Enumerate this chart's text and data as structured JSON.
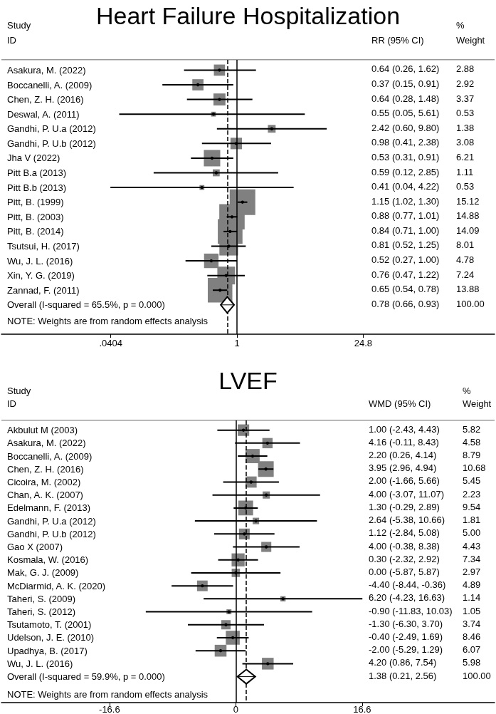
{
  "chart_data": [
    {
      "type": "scatter",
      "orientation": "horizontal",
      "title": "Heart Failure Hospitalization",
      "log": "x",
      "xlim": [
        0.0025,
        700
      ],
      "xticks": [
        {
          "value": 0.0404,
          "label": ".0404"
        },
        1,
        24.8
      ],
      "grid": false,
      "categories": [
        "Asakura, M. (2022)",
        "Boccanelli, A. (2009)",
        "Chen, Z. H. (2016)",
        "Deswal, A. (2011)",
        "Gandhi, P. U.a (2012)",
        "Gandhi, P. U.b (2012)",
        "Jha V (2022)",
        "Pitt B.a (2013)",
        "Pitt B.b (2013)",
        "Pitt, B. (1999)",
        "Pitt, B. (2003)",
        "Pitt, B. (2014)",
        "Tsutsui, H. (2017)",
        "Wu, J. L. (2016)",
        "Xin, Y. G. (2019)",
        "Zannad, F. (2011)",
        "Overall (I-squared = 65.5%, p = 0.000)"
      ],
      "series": [
        {
          "type": "bubble",
          "marker": "square",
          "color": "#808080",
          "values": [
            0.64,
            0.37,
            0.64,
            0.55,
            2.42,
            0.98,
            0.53,
            0.59,
            0.41,
            1.15,
            0.88,
            0.84,
            0.81,
            0.52,
            0.76,
            0.65,
            null
          ],
          "sizes": [
            0.19,
            0.19,
            0.22,
            0.035,
            0.091,
            0.2,
            0.41,
            0.073,
            0.035,
            1,
            0.98,
            0.93,
            0.53,
            0.32,
            0.48,
            0.92,
            null
          ],
          "errors": [
            [
              0.26,
              1.62
            ],
            [
              0.15,
              0.91
            ],
            [
              0.28,
              1.48
            ],
            [
              0.05,
              5.61
            ],
            [
              0.6,
              9.8
            ],
            [
              0.41,
              2.38
            ],
            [
              0.31,
              0.91
            ],
            [
              0.12,
              2.85
            ],
            [
              0.04,
              4.22
            ],
            [
              1.02,
              1.3
            ],
            [
              0.77,
              1.01
            ],
            [
              0.71,
              1.0
            ],
            [
              0.52,
              1.25
            ],
            [
              0.27,
              1.0
            ],
            [
              0.47,
              1.22
            ],
            [
              0.54,
              0.78
            ],
            null
          ]
        },
        {
          "type": "scatter",
          "marker": "diamond",
          "color": "#000000",
          "values": [
            null,
            null,
            null,
            null,
            null,
            null,
            null,
            null,
            null,
            null,
            null,
            null,
            null,
            null,
            null,
            null,
            0.78
          ],
          "errors": [
            null,
            null,
            null,
            null,
            null,
            null,
            null,
            null,
            null,
            null,
            null,
            null,
            null,
            null,
            null,
            null,
            [
              0.66,
              0.93
            ]
          ]
        }
      ],
      "ref_lines": [
        {
          "axis": "x",
          "value": 1,
          "line_style": "solid",
          "color": "#000000"
        },
        {
          "axis": "x",
          "value": 0.78,
          "line_style": "dashed",
          "color": "#000000"
        }
      ],
      "annotations": [
        "Study",
        "ID",
        "RR (95% CI)",
        "%",
        "Weight",
        "NOTE: Weights are from random effects analysis",
        "0.64 (0.26, 1.62)",
        "0.37 (0.15, 0.91)",
        "0.64 (0.28, 1.48)",
        "0.55 (0.05, 5.61)",
        "2.42 (0.60, 9.80)",
        "0.98 (0.41, 2.38)",
        "0.53 (0.31, 0.91)",
        "0.59 (0.12, 2.85)",
        "0.41 (0.04, 4.22)",
        "1.15 (1.02, 1.30)",
        "0.88 (0.77, 1.01)",
        "0.84 (0.71, 1.00)",
        "0.81 (0.52, 1.25)",
        "0.52 (0.27, 1.00)",
        "0.76 (0.47, 1.22)",
        "0.65 (0.54, 0.78)",
        "0.78 (0.66, 0.93)",
        "2.88",
        "2.92",
        "3.37",
        "0.53",
        "1.38",
        "3.08",
        "6.21",
        "1.11",
        "0.53",
        "15.12",
        "14.88",
        "14.09",
        "8.01",
        "4.78",
        "7.24",
        "13.88",
        "100.00"
      ]
    },
    {
      "type": "scatter",
      "orientation": "horizontal",
      "title": "LVEF",
      "xlim": [
        -30.8,
        34
      ],
      "xticks": [
        -16.6,
        0,
        16.6
      ],
      "grid": false,
      "categories": [
        "Akbulut M (2003)",
        "Asakura, M. (2022)",
        "Boccanelli, A. (2009)",
        "Chen, Z. H. (2016)",
        "Cicoira, M. (2002)",
        "Chan, A. K. (2007)",
        "Edelmann, F. (2013)",
        "Gandhi, P. U.a (2012)",
        "Gandhi, P. U.b (2012)",
        "Gao X (2007)",
        "Kosmala, W. (2016)",
        "Mak, G. J. (2009)",
        "McDiarmid, A. K. (2020)",
        "Taheri, S. (2009)",
        "Taheri, S. (2012)",
        "Tsutamoto, T. (2001)",
        "Udelson, J. E. (2010)",
        "Upadhya, B. (2017)",
        "Wu, J. L. (2016)",
        "Overall (I-squared = 59.9%, p = 0.000)"
      ],
      "series": [
        {
          "type": "bubble",
          "marker": "square",
          "color": "#808080",
          "values": [
            1.0,
            4.16,
            2.2,
            3.95,
            2.0,
            4.0,
            1.3,
            2.64,
            1.12,
            4.0,
            0.3,
            0.0,
            -4.4,
            6.2,
            -0.9,
            -1.3,
            -0.4,
            -2.0,
            4.2,
            null
          ],
          "sizes": [
            0.54,
            0.43,
            0.82,
            1,
            0.51,
            0.21,
            0.89,
            0.17,
            0.47,
            0.41,
            0.69,
            0.28,
            0.46,
            0.11,
            0.1,
            0.35,
            0.79,
            0.57,
            0.56,
            null
          ],
          "errors": [
            [
              -2.43,
              4.43
            ],
            [
              -0.11,
              8.43
            ],
            [
              0.26,
              4.14
            ],
            [
              2.96,
              4.94
            ],
            [
              -1.66,
              5.66
            ],
            [
              -3.07,
              11.07
            ],
            [
              -0.29,
              2.89
            ],
            [
              -5.38,
              10.66
            ],
            [
              -2.84,
              5.08
            ],
            [
              -0.38,
              8.38
            ],
            [
              -2.32,
              2.92
            ],
            [
              -5.87,
              5.87
            ],
            [
              -8.44,
              -0.36
            ],
            [
              -4.23,
              16.63
            ],
            [
              -11.83,
              10.03
            ],
            [
              -6.3,
              3.7
            ],
            [
              -2.49,
              1.69
            ],
            [
              -5.29,
              1.29
            ],
            [
              0.86,
              7.54
            ],
            null
          ]
        },
        {
          "type": "scatter",
          "marker": "diamond",
          "color": "#000000",
          "values": [
            null,
            null,
            null,
            null,
            null,
            null,
            null,
            null,
            null,
            null,
            null,
            null,
            null,
            null,
            null,
            null,
            null,
            null,
            null,
            1.38
          ],
          "errors": [
            null,
            null,
            null,
            null,
            null,
            null,
            null,
            null,
            null,
            null,
            null,
            null,
            null,
            null,
            null,
            null,
            null,
            null,
            null,
            [
              0.21,
              2.56
            ]
          ]
        }
      ],
      "ref_lines": [
        {
          "axis": "x",
          "value": 0,
          "line_style": "solid",
          "color": "#000000"
        },
        {
          "axis": "x",
          "value": 1.38,
          "line_style": "dashed",
          "color": "#000000"
        }
      ],
      "annotations": [
        "Study",
        "ID",
        "WMD (95% CI)",
        "%",
        "Weight",
        "NOTE: Weights are from random effects analysis",
        "1.00 (-2.43, 4.43)",
        "4.16 (-0.11, 8.43)",
        "2.20 (0.26, 4.14)",
        "3.95 (2.96, 4.94)",
        "2.00 (-1.66, 5.66)",
        "4.00 (-3.07, 11.07)",
        "1.30 (-0.29, 2.89)",
        "2.64 (-5.38, 10.66)",
        "1.12 (-2.84, 5.08)",
        "4.00 (-0.38, 8.38)",
        "0.30 (-2.32, 2.92)",
        "0.00 (-5.87, 5.87)",
        "-4.40 (-8.44, -0.36)",
        "6.20 (-4.23, 16.63)",
        "-0.90 (-11.83, 10.03)",
        "-1.30 (-6.30, 3.70)",
        "-0.40 (-2.49, 1.69)",
        "-2.00 (-5.29, 1.29)",
        "4.20 (0.86, 7.54)",
        "1.38 (0.21, 2.56)",
        "5.82",
        "4.58",
        "8.79",
        "10.68",
        "5.45",
        "2.23",
        "9.54",
        "1.81",
        "5.00",
        "4.43",
        "7.34",
        "2.97",
        "4.89",
        "1.14",
        "1.05",
        "3.74",
        "8.46",
        "6.07",
        "5.98",
        "100.00"
      ]
    }
  ]
}
